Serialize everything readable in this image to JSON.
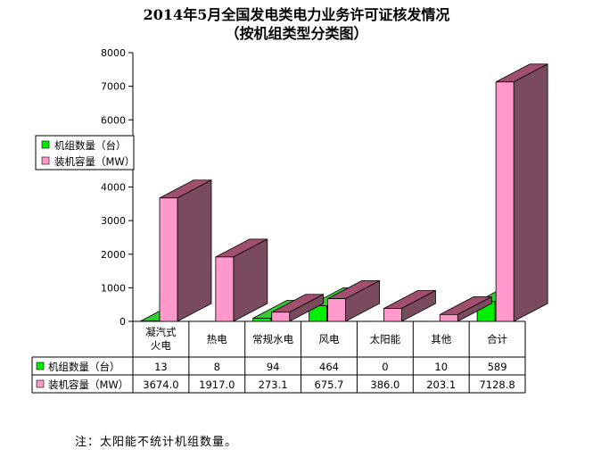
{
  "title_line1": "2014年5月全国发电类电力业务许可证核发情况",
  "title_line2": "（按机组类型分类图）",
  "note": "注：太阳能不统计机组数量。",
  "colors": {
    "units_front": "#00ee00",
    "units_top": "#33cc33",
    "units_side": "#009900",
    "cap_front": "#ff99cc",
    "cap_top": "#a0506e",
    "cap_side": "#7a4a5f"
  },
  "chart_data": {
    "type": "bar",
    "title": "2014年5月全国发电类电力业务许可证核发情况（按机组类型分类图）",
    "categories": [
      "凝汽式火电",
      "热电",
      "常规水电",
      "风电",
      "太阳能",
      "其他",
      "合计"
    ],
    "category_lines": [
      [
        "凝汽式",
        "火电"
      ],
      [
        "热电"
      ],
      [
        "常规水电"
      ],
      [
        "风电"
      ],
      [
        "太阳能"
      ],
      [
        "其他"
      ],
      [
        "合计"
      ]
    ],
    "series": [
      {
        "name": "机组数量（台）",
        "values": [
          13,
          8,
          94,
          464,
          0,
          10,
          589
        ],
        "labels": [
          "13",
          "8",
          "94",
          "464",
          "0",
          "10",
          "589"
        ]
      },
      {
        "name": "装机容量（MW）",
        "values": [
          3674.0,
          1917.0,
          273.1,
          675.7,
          386.0,
          203.1,
          7128.8
        ],
        "labels": [
          "3674.0",
          "1917.0",
          "273.1",
          "675.7",
          "386.0",
          "203.1",
          "7128.8"
        ]
      }
    ],
    "ylim": [
      0,
      8000
    ],
    "yticks": [
      "0",
      "1000",
      "2000",
      "3000",
      "4000",
      "5000",
      "6000",
      "7000",
      "8000"
    ],
    "legend_position": "left, overlapping upper plot",
    "data_table": true,
    "grid": false
  }
}
